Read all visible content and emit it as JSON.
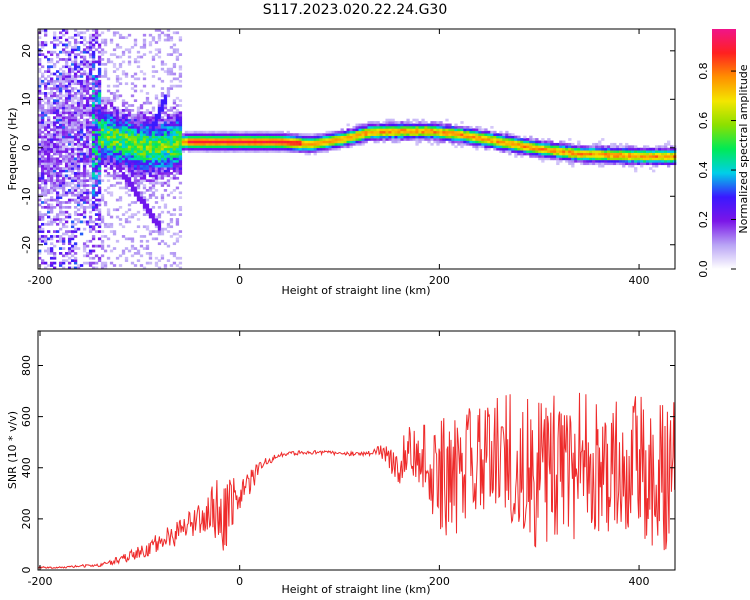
{
  "title": "S117.2023.020.22.24.G30",
  "chart_data": [
    {
      "type": "heatmap",
      "xlabel": "Height of straight line (km)",
      "ylabel": "Frequency (Hz)",
      "xlim": [
        -202,
        436
      ],
      "ylim": [
        -25,
        24.5
      ],
      "xticks": [
        -200,
        0,
        200,
        400
      ],
      "yticks": [
        -20,
        -10,
        0,
        10,
        20
      ],
      "colorbar": {
        "label": "Normalized spectral amplitude",
        "range": [
          0,
          0.97
        ],
        "ticks": [
          0.0,
          0.2,
          0.4,
          0.6,
          0.8
        ],
        "colors": [
          "#ffffff",
          "#b9a4f5",
          "#7b16e8",
          "#3a18ff",
          "#00cfe8",
          "#00ea56",
          "#8ce000",
          "#f4e600",
          "#ff8f00",
          "#ff2020",
          "#f0148a"
        ]
      },
      "ridge": {
        "x": [
          -200,
          -160,
          -130,
          -100,
          -80,
          -55,
          -30,
          0,
          40,
          70,
          100,
          130,
          160,
          190,
          220,
          260,
          300,
          340,
          380,
          400,
          436
        ],
        "frequency": [
          0,
          3,
          2,
          0,
          0,
          1,
          1,
          1,
          1,
          0.5,
          1.5,
          3,
          3.2,
          3.2,
          2.5,
          1,
          -0.5,
          -1.5,
          -1.8,
          -2,
          -2
        ]
      }
    },
    {
      "type": "line",
      "xlabel": "Height of straight line (km)",
      "ylabel": "SNR (10 * v/v)",
      "xlim": [
        -202,
        436
      ],
      "ylim": [
        0,
        935
      ],
      "xticks": [
        -200,
        0,
        200,
        400
      ],
      "yticks": [
        0,
        200,
        400,
        600,
        800
      ],
      "color": "#ee2a2a",
      "x": [
        -200,
        -180,
        -160,
        -140,
        -120,
        -100,
        -80,
        -60,
        -40,
        -30,
        -25,
        -15,
        -10,
        0,
        10,
        20,
        30,
        40,
        60,
        80,
        100,
        120,
        135,
        140,
        150,
        160,
        170,
        185,
        195,
        210,
        230,
        250,
        270,
        290,
        310,
        330,
        350,
        370,
        390,
        410,
        436
      ],
      "y": [
        10,
        10,
        15,
        20,
        40,
        70,
        110,
        150,
        200,
        230,
        250,
        200,
        260,
        300,
        340,
        400,
        430,
        450,
        460,
        460,
        455,
        455,
        460,
        470,
        470,
        420,
        470,
        440,
        440,
        400,
        430,
        400,
        430,
        390,
        390,
        390,
        400,
        390,
        380,
        380,
        360
      ],
      "noise": [
        3,
        3,
        5,
        8,
        15,
        25,
        40,
        50,
        60,
        90,
        120,
        150,
        150,
        60,
        50,
        30,
        15,
        8,
        8,
        8,
        8,
        8,
        12,
        20,
        80,
        90,
        90,
        150,
        260,
        280,
        280,
        280,
        280,
        300,
        300,
        300,
        300,
        300,
        300,
        300,
        300
      ]
    }
  ]
}
